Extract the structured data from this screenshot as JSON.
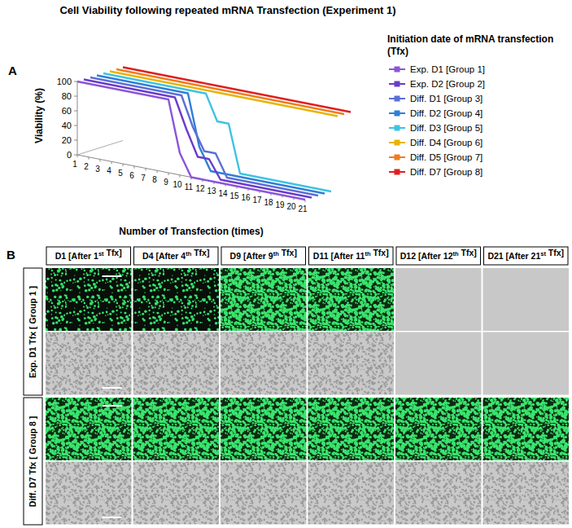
{
  "figure_title": "Cell Viability following repeated mRNA Transfection (Experiment 1)",
  "chart_data": {
    "type": "line",
    "panel": "A",
    "xlabel": "Number of Transfection (times)",
    "ylabel": "Viability (%)",
    "legend_title": "Initiation date of mRNA transfection (Tfx)",
    "legend": "right",
    "grid": false,
    "x": [
      1,
      2,
      3,
      4,
      5,
      6,
      7,
      8,
      9,
      10,
      11,
      12,
      13,
      14,
      15,
      16,
      17,
      18,
      19,
      20,
      21
    ],
    "xlim": [
      1,
      21
    ],
    "xticks": [
      1,
      2,
      3,
      4,
      5,
      6,
      7,
      8,
      9,
      10,
      11,
      12,
      13,
      14,
      15,
      16,
      17,
      18,
      19,
      20,
      21
    ],
    "ylim": [
      0,
      100
    ],
    "yticks": [
      0,
      20,
      40,
      60,
      80,
      100
    ],
    "series": [
      {
        "name": "Exp. D1 [Group 1]",
        "color": "#8b55d9",
        "values": [
          100,
          100,
          100,
          100,
          100,
          100,
          100,
          100,
          100,
          30,
          0,
          0,
          0,
          0,
          0,
          0,
          0,
          0,
          0,
          0,
          0
        ]
      },
      {
        "name": "Exp. D2 [Group 2]",
        "color": "#6a3cc8",
        "values": [
          100,
          100,
          100,
          100,
          100,
          100,
          100,
          100,
          100,
          60,
          25,
          25,
          0,
          0,
          0,
          0,
          0,
          0,
          0,
          0,
          0
        ]
      },
      {
        "name": "Diff. D1 [Group 3]",
        "color": "#5b6fd6",
        "values": [
          100,
          100,
          100,
          100,
          100,
          100,
          100,
          100,
          100,
          60,
          30,
          30,
          0,
          0,
          0,
          0,
          0,
          0,
          0,
          0,
          0
        ]
      },
      {
        "name": "Diff. D2 [Group 4]",
        "color": "#2f7fd6",
        "values": [
          100,
          100,
          100,
          100,
          100,
          100,
          100,
          100,
          100,
          30,
          0,
          0,
          0,
          0,
          0,
          0,
          0,
          0,
          0,
          0,
          0
        ]
      },
      {
        "name": "Diff. D3 [Group 5]",
        "color": "#3ec3e3",
        "values": [
          100,
          100,
          100,
          100,
          100,
          100,
          100,
          100,
          100,
          100,
          65,
          65,
          0,
          0,
          0,
          0,
          0,
          0,
          0,
          0,
          0
        ]
      },
      {
        "name": "Diff. D4 [Group 6]",
        "color": "#e8b400",
        "values": [
          100,
          100,
          100,
          100,
          100,
          100,
          100,
          100,
          100,
          100,
          100,
          100,
          100,
          100,
          100,
          100,
          100,
          100,
          100,
          100,
          100
        ]
      },
      {
        "name": "Diff. D5 [Group 7]",
        "color": "#f07d1e",
        "values": [
          100,
          100,
          100,
          100,
          100,
          100,
          100,
          100,
          100,
          100,
          100,
          100,
          100,
          100,
          100,
          100,
          100,
          100,
          100,
          100,
          100
        ]
      },
      {
        "name": "Diff. D7 [Group 8]",
        "color": "#e01f1f",
        "values": [
          100,
          100,
          100,
          100,
          100,
          100,
          100,
          100,
          100,
          100,
          100,
          100,
          100,
          100,
          100,
          100,
          100,
          100,
          100,
          100,
          100
        ]
      }
    ]
  },
  "image_grid": {
    "panel": "B",
    "columns": [
      "D1 [After 1st Tfx]",
      "D4 [After 4th Tfx]",
      "D9 [After 9th Tfx]",
      "D11 [After 11th Tfx]",
      "D12 [After 12th Tfx]",
      "D21 [After 21st Tfx]"
    ],
    "rows": [
      {
        "label": "Exp. D1 Tfx [ Group 1 ]",
        "images_present": [
          true,
          true,
          true,
          true,
          false,
          false
        ]
      },
      {
        "label": "Diff. D7 Tfx [ Group 8 ]",
        "images_present": [
          true,
          true,
          true,
          true,
          true,
          true
        ]
      }
    ]
  }
}
